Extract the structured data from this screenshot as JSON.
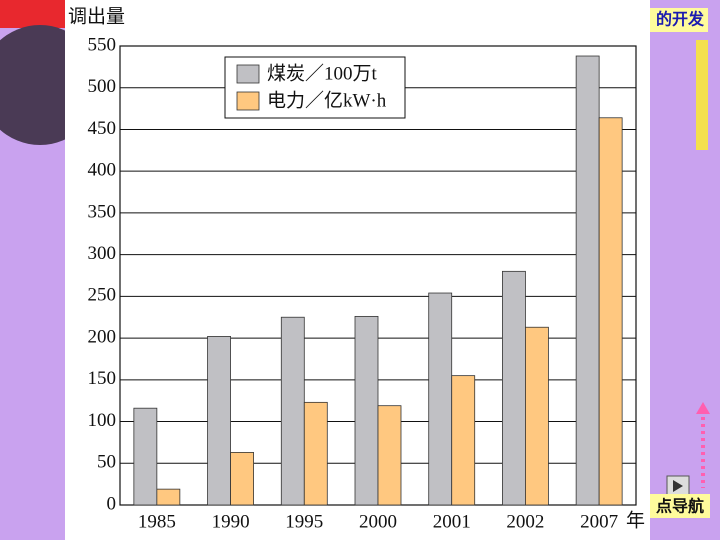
{
  "slide": {
    "heading": "的开发",
    "nav": "点导航"
  },
  "chart_data": {
    "type": "bar",
    "y_label": "调出量",
    "x_label": "年",
    "categories": [
      "1985",
      "1990",
      "1995",
      "2000",
      "2001",
      "2002",
      "2007"
    ],
    "series": [
      {
        "name": "煤炭／100万t",
        "color": "#c0c0c4",
        "values": [
          116,
          202,
          225,
          226,
          254,
          280,
          538
        ]
      },
      {
        "name": "电力／亿kW·h",
        "color": "#ffc880",
        "values": [
          19,
          63,
          123,
          119,
          155,
          213,
          464
        ]
      }
    ],
    "ylim": [
      0,
      550
    ],
    "yticks": [
      0,
      50,
      100,
      150,
      200,
      250,
      300,
      350,
      400,
      450,
      500,
      550
    ],
    "grid": true,
    "legend": "top-left"
  }
}
